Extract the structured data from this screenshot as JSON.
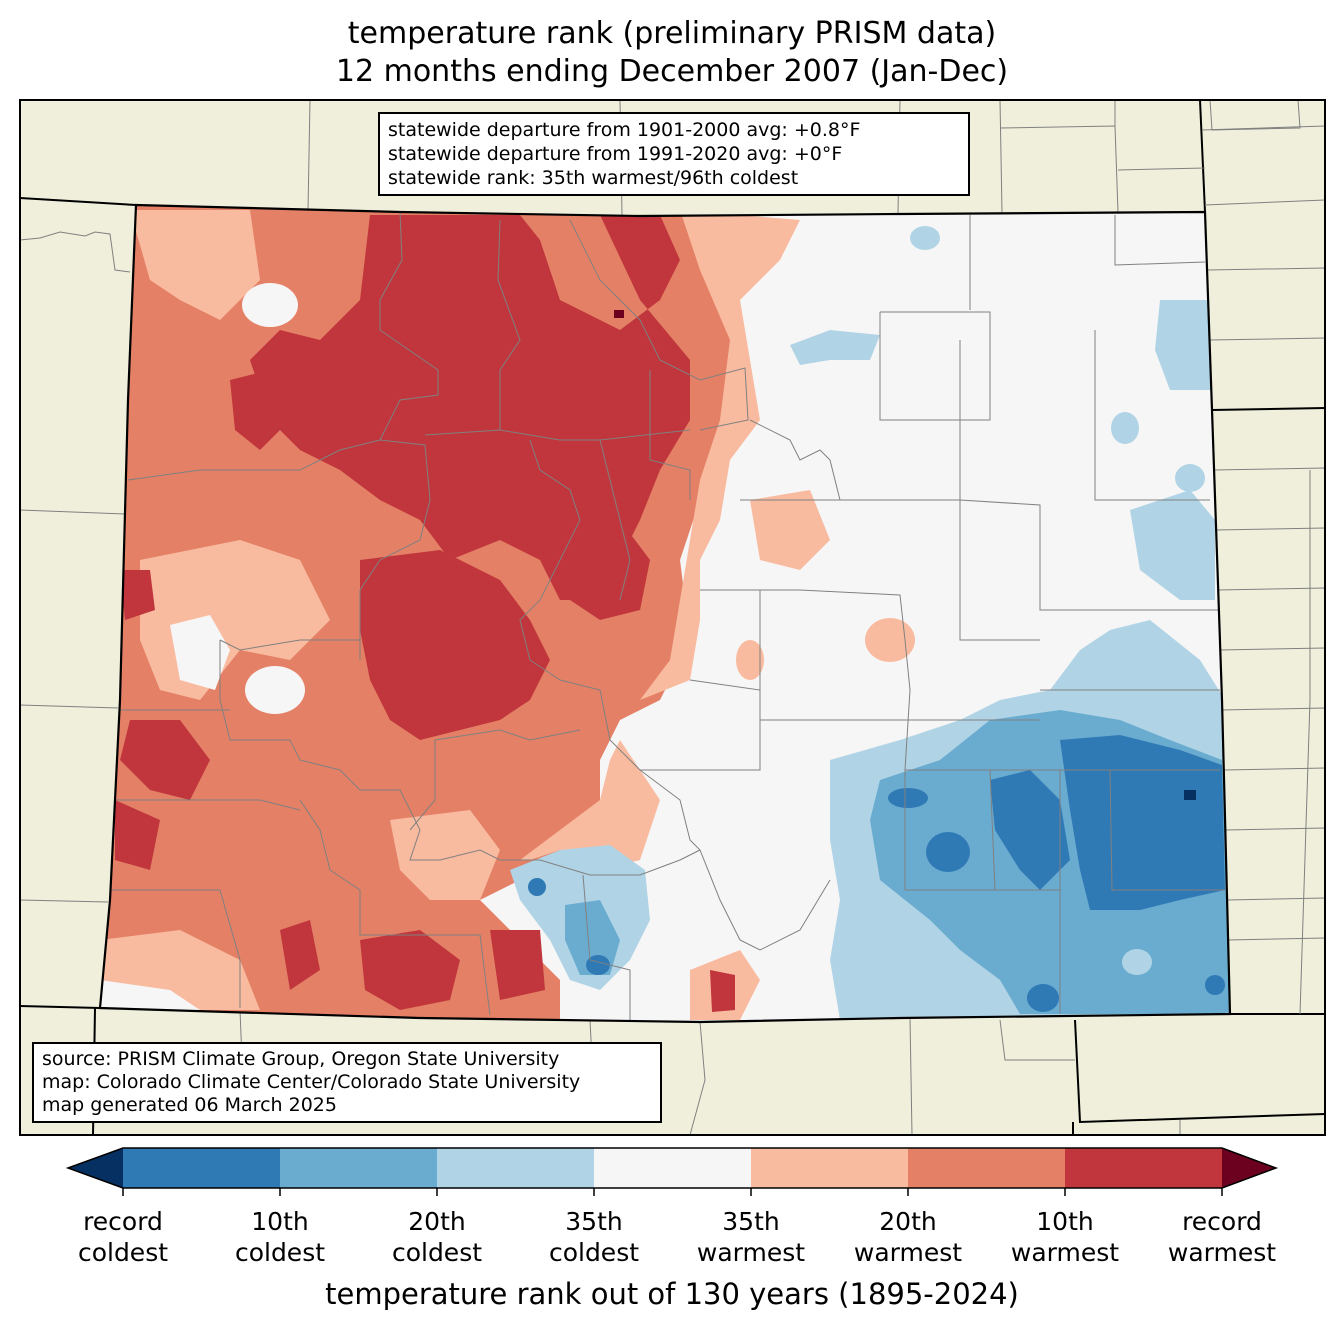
{
  "title": {
    "line1": "temperature rank (preliminary PRISM data)",
    "line2": "12 months ending December 2007 (Jan-Dec)"
  },
  "stats": {
    "line1": "statewide departure from 1901-2000 avg: +0.8°F",
    "line2": "statewide departure from 1991-2020 avg: +0°F",
    "line3": "statewide rank: 35th warmest/96th coldest"
  },
  "credits": {
    "line1": "source: PRISM Climate Group, Oregon State University",
    "line2": "map: Colorado Climate Center/Colorado State University",
    "line3": "map generated 06 March 2025"
  },
  "colorbar": {
    "title": "temperature rank out of 130 years (1895-2024)",
    "ticks": [
      {
        "line1": "record",
        "line2": "coldest"
      },
      {
        "line1": "10th",
        "line2": "coldest"
      },
      {
        "line1": "20th",
        "line2": "coldest"
      },
      {
        "line1": "35th",
        "line2": "coldest"
      },
      {
        "line1": "35th",
        "line2": "warmest"
      },
      {
        "line1": "20th",
        "line2": "warmest"
      },
      {
        "line1": "10th",
        "line2": "warmest"
      },
      {
        "line1": "record",
        "line2": "warmest"
      }
    ],
    "bins": [
      {
        "color": "#053061"
      },
      {
        "color": "#2f79b5"
      },
      {
        "color": "#6aacd0"
      },
      {
        "color": "#b0d4e6"
      },
      {
        "color": "#f7f6f6"
      },
      {
        "color": "#f9bba0"
      },
      {
        "color": "#e48066"
      },
      {
        "color": "#c0363c"
      },
      {
        "color": "#6b011f"
      }
    ]
  },
  "colors": {
    "land": "#efefdc",
    "border": "#000000",
    "county_line": "#808080"
  }
}
